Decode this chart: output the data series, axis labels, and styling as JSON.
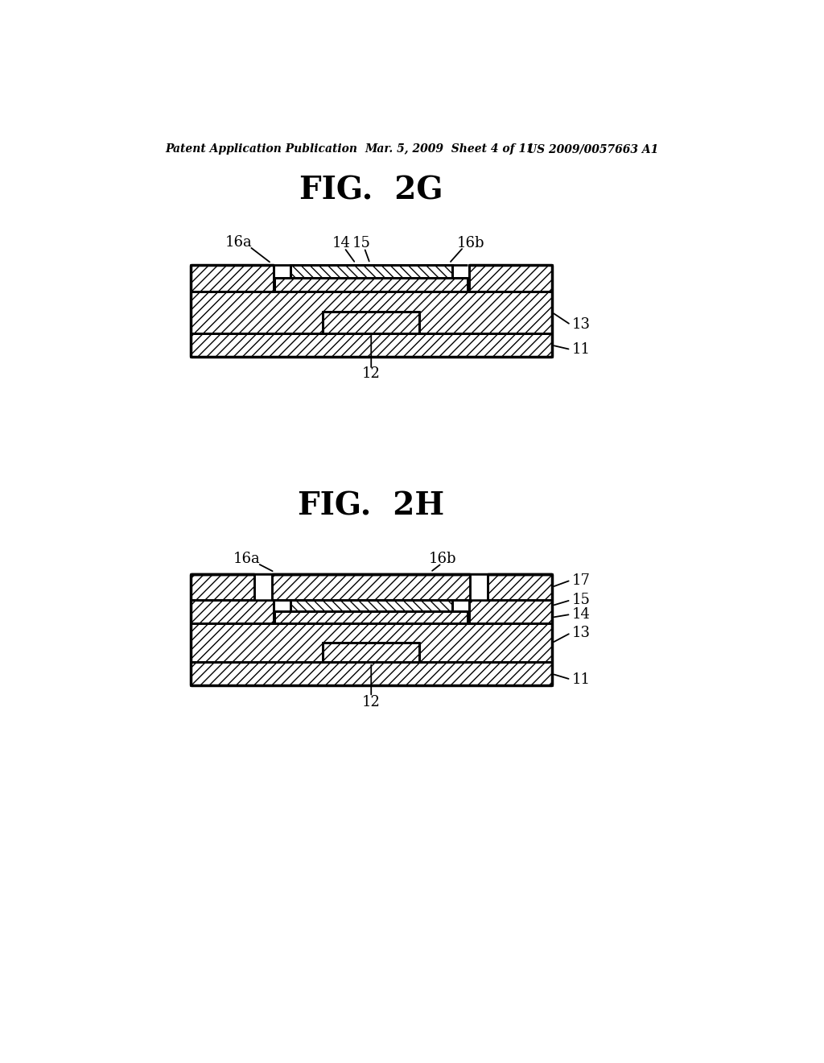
{
  "bg_color": "#ffffff",
  "header_left": "Patent Application Publication",
  "header_mid": "Mar. 5, 2009  Sheet 4 of 11",
  "header_right": "US 2009/0057663 A1",
  "fig2g_title": "FIG.  2G",
  "fig2h_title": "FIG.  2H",
  "line_color": "#000000",
  "lw": 2.0
}
